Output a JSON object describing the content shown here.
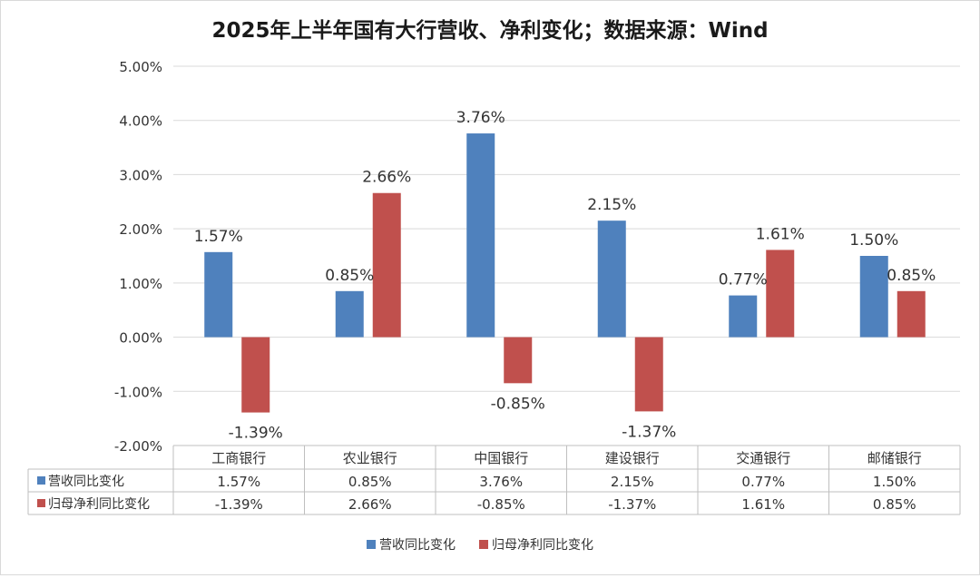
{
  "chart_data": {
    "type": "bar",
    "title": "2025年上半年国有大行营收、净利变化；数据来源：Wind",
    "categories": [
      "工商银行",
      "农业银行",
      "中国银行",
      "建设银行",
      "交通银行",
      "邮储银行"
    ],
    "series": [
      {
        "name": "营收同比变化",
        "color": "#4f81bd",
        "values": [
          1.57,
          0.85,
          3.76,
          2.15,
          0.77,
          1.5
        ],
        "labels": [
          "1.57%",
          "0.85%",
          "3.76%",
          "2.15%",
          "0.77%",
          "1.50%"
        ]
      },
      {
        "name": "归母净利同比变化",
        "color": "#c0504d",
        "values": [
          -1.39,
          2.66,
          -0.85,
          -1.37,
          1.61,
          0.85
        ],
        "labels": [
          "-1.39%",
          "2.66%",
          "-0.85%",
          "-1.37%",
          "1.61%",
          "0.85%"
        ]
      }
    ],
    "ylim": [
      -2,
      5
    ],
    "yticks": [
      "-2.00%",
      "-1.00%",
      "0.00%",
      "1.00%",
      "2.00%",
      "3.00%",
      "4.00%",
      "5.00%"
    ],
    "grid": true,
    "legend": "bottom",
    "data_table": true
  }
}
